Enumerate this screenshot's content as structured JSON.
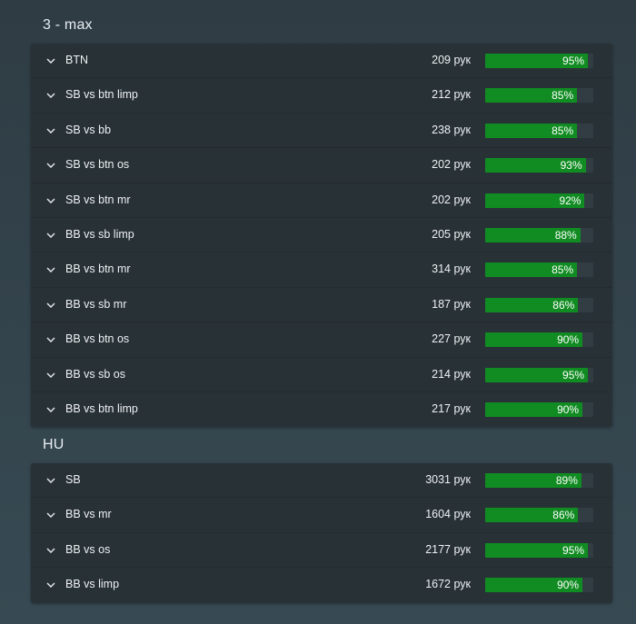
{
  "sections": [
    {
      "title": "3 - max",
      "rows": [
        {
          "label": "BTN",
          "count": "209 рук",
          "percent": "95%",
          "value": 95
        },
        {
          "label": "SB vs btn limp",
          "count": "212 рук",
          "percent": "85%",
          "value": 85
        },
        {
          "label": "SB vs bb",
          "count": "238 рук",
          "percent": "85%",
          "value": 85
        },
        {
          "label": "SB vs btn os",
          "count": "202 рук",
          "percent": "93%",
          "value": 93
        },
        {
          "label": "SB vs btn mr",
          "count": "202 рук",
          "percent": "92%",
          "value": 92
        },
        {
          "label": "BB vs sb limp",
          "count": "205 рук",
          "percent": "88%",
          "value": 88
        },
        {
          "label": "BB vs btn mr",
          "count": "314 рук",
          "percent": "85%",
          "value": 85
        },
        {
          "label": "BB vs sb mr",
          "count": "187 рук",
          "percent": "86%",
          "value": 86
        },
        {
          "label": "BB vs btn os",
          "count": "227 рук",
          "percent": "90%",
          "value": 90
        },
        {
          "label": "BB vs sb os",
          "count": "214 рук",
          "percent": "95%",
          "value": 95
        },
        {
          "label": "BB vs btn limp",
          "count": "217 рук",
          "percent": "90%",
          "value": 90
        }
      ]
    },
    {
      "title": "HU",
      "rows": [
        {
          "label": "SB",
          "count": "3031 рук",
          "percent": "89%",
          "value": 89
        },
        {
          "label": "BB vs mr",
          "count": "1604 рук",
          "percent": "86%",
          "value": 86
        },
        {
          "label": "BB vs os",
          "count": "2177 рук",
          "percent": "95%",
          "value": 95
        },
        {
          "label": "BB vs limp",
          "count": "1672 рук",
          "percent": "90%",
          "value": 90
        }
      ]
    }
  ],
  "colors": {
    "bar_fill": "#118c22",
    "bar_track": "#323d43",
    "panel_bg": "#283136"
  },
  "icons": {
    "row_toggle": "chevron-down-icon"
  }
}
